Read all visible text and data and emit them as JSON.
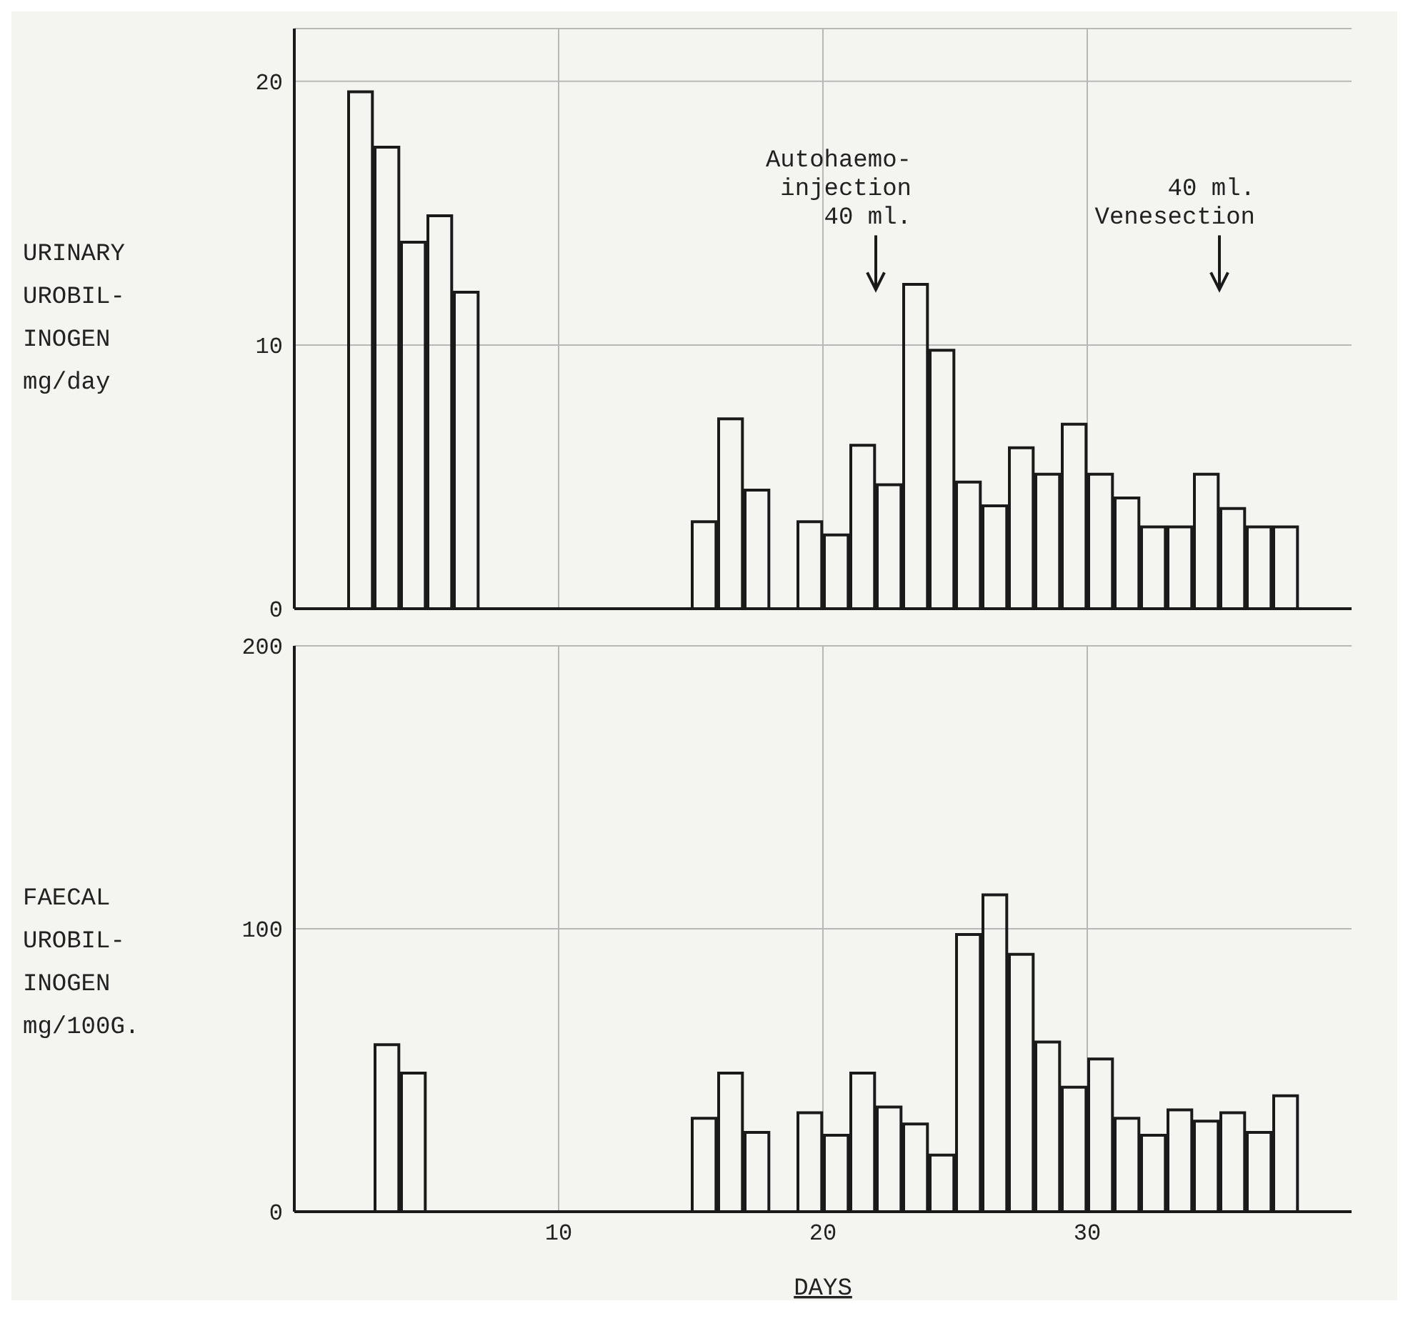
{
  "chart_data": [
    {
      "type": "histogram",
      "ylabel": "URINARY\nUROBIL-\nINOGEN\nmg/day",
      "color": "#1a1a1a",
      "bins": [
        2,
        3,
        4,
        5,
        6,
        7,
        8,
        9,
        10,
        11,
        12,
        13,
        14,
        15,
        16,
        17,
        18,
        19,
        20,
        21,
        22,
        23,
        24,
        25,
        26,
        27,
        28,
        29,
        30,
        31,
        32,
        33,
        34,
        35,
        36,
        37,
        38
      ],
      "values": [
        19.6,
        17.5,
        13.9,
        14.9,
        12,
        null,
        null,
        null,
        null,
        null,
        null,
        null,
        null,
        3.3,
        7.2,
        4.5,
        null,
        3.3,
        2.8,
        6.2,
        4.7,
        12.3,
        9.8,
        4.8,
        3.9,
        6.1,
        5.1,
        7.0,
        5.1,
        4.2,
        3.1,
        3.1,
        5.1,
        3.8,
        3.1,
        3.1
      ],
      "xlim": [
        0,
        40
      ],
      "xticks": [
        10,
        20,
        30
      ],
      "ylim": [
        0,
        22
      ],
      "yticks": [
        0,
        10,
        20
      ],
      "grid": true,
      "tick_labels": "y",
      "ref_lines": [
        {
          "axis": "x",
          "value": 22,
          "label": "Autohaemo-\ninjection\n40 ml."
        },
        {
          "axis": "x",
          "value": 35,
          "label": "40 ml.\nVenesection"
        }
      ]
    },
    {
      "type": "histogram",
      "ylabel": "FAECAL\nUROBIL-\nINOGEN\nmg/100G.",
      "xlabel": "DAYS",
      "color": "#1a1a1a",
      "bins": [
        3,
        4,
        5,
        6,
        7,
        8,
        9,
        10,
        11,
        12,
        13,
        14,
        15,
        16,
        17,
        18,
        19,
        20,
        21,
        22,
        23,
        24,
        25,
        26,
        27,
        28,
        29,
        30,
        31,
        32,
        33,
        34,
        35,
        36,
        37,
        38
      ],
      "values": [
        59,
        49,
        null,
        null,
        null,
        null,
        null,
        null,
        null,
        null,
        null,
        null,
        33,
        49,
        28,
        null,
        35,
        27,
        49,
        37,
        31,
        20,
        98,
        112,
        91,
        60,
        44,
        54,
        33,
        27,
        36,
        32,
        35,
        28,
        41
      ],
      "xlim": [
        0,
        40
      ],
      "xticks": [
        10,
        20,
        30
      ],
      "ylim": [
        0,
        200
      ],
      "yticks": [
        0,
        100,
        200
      ],
      "grid": true
    }
  ]
}
